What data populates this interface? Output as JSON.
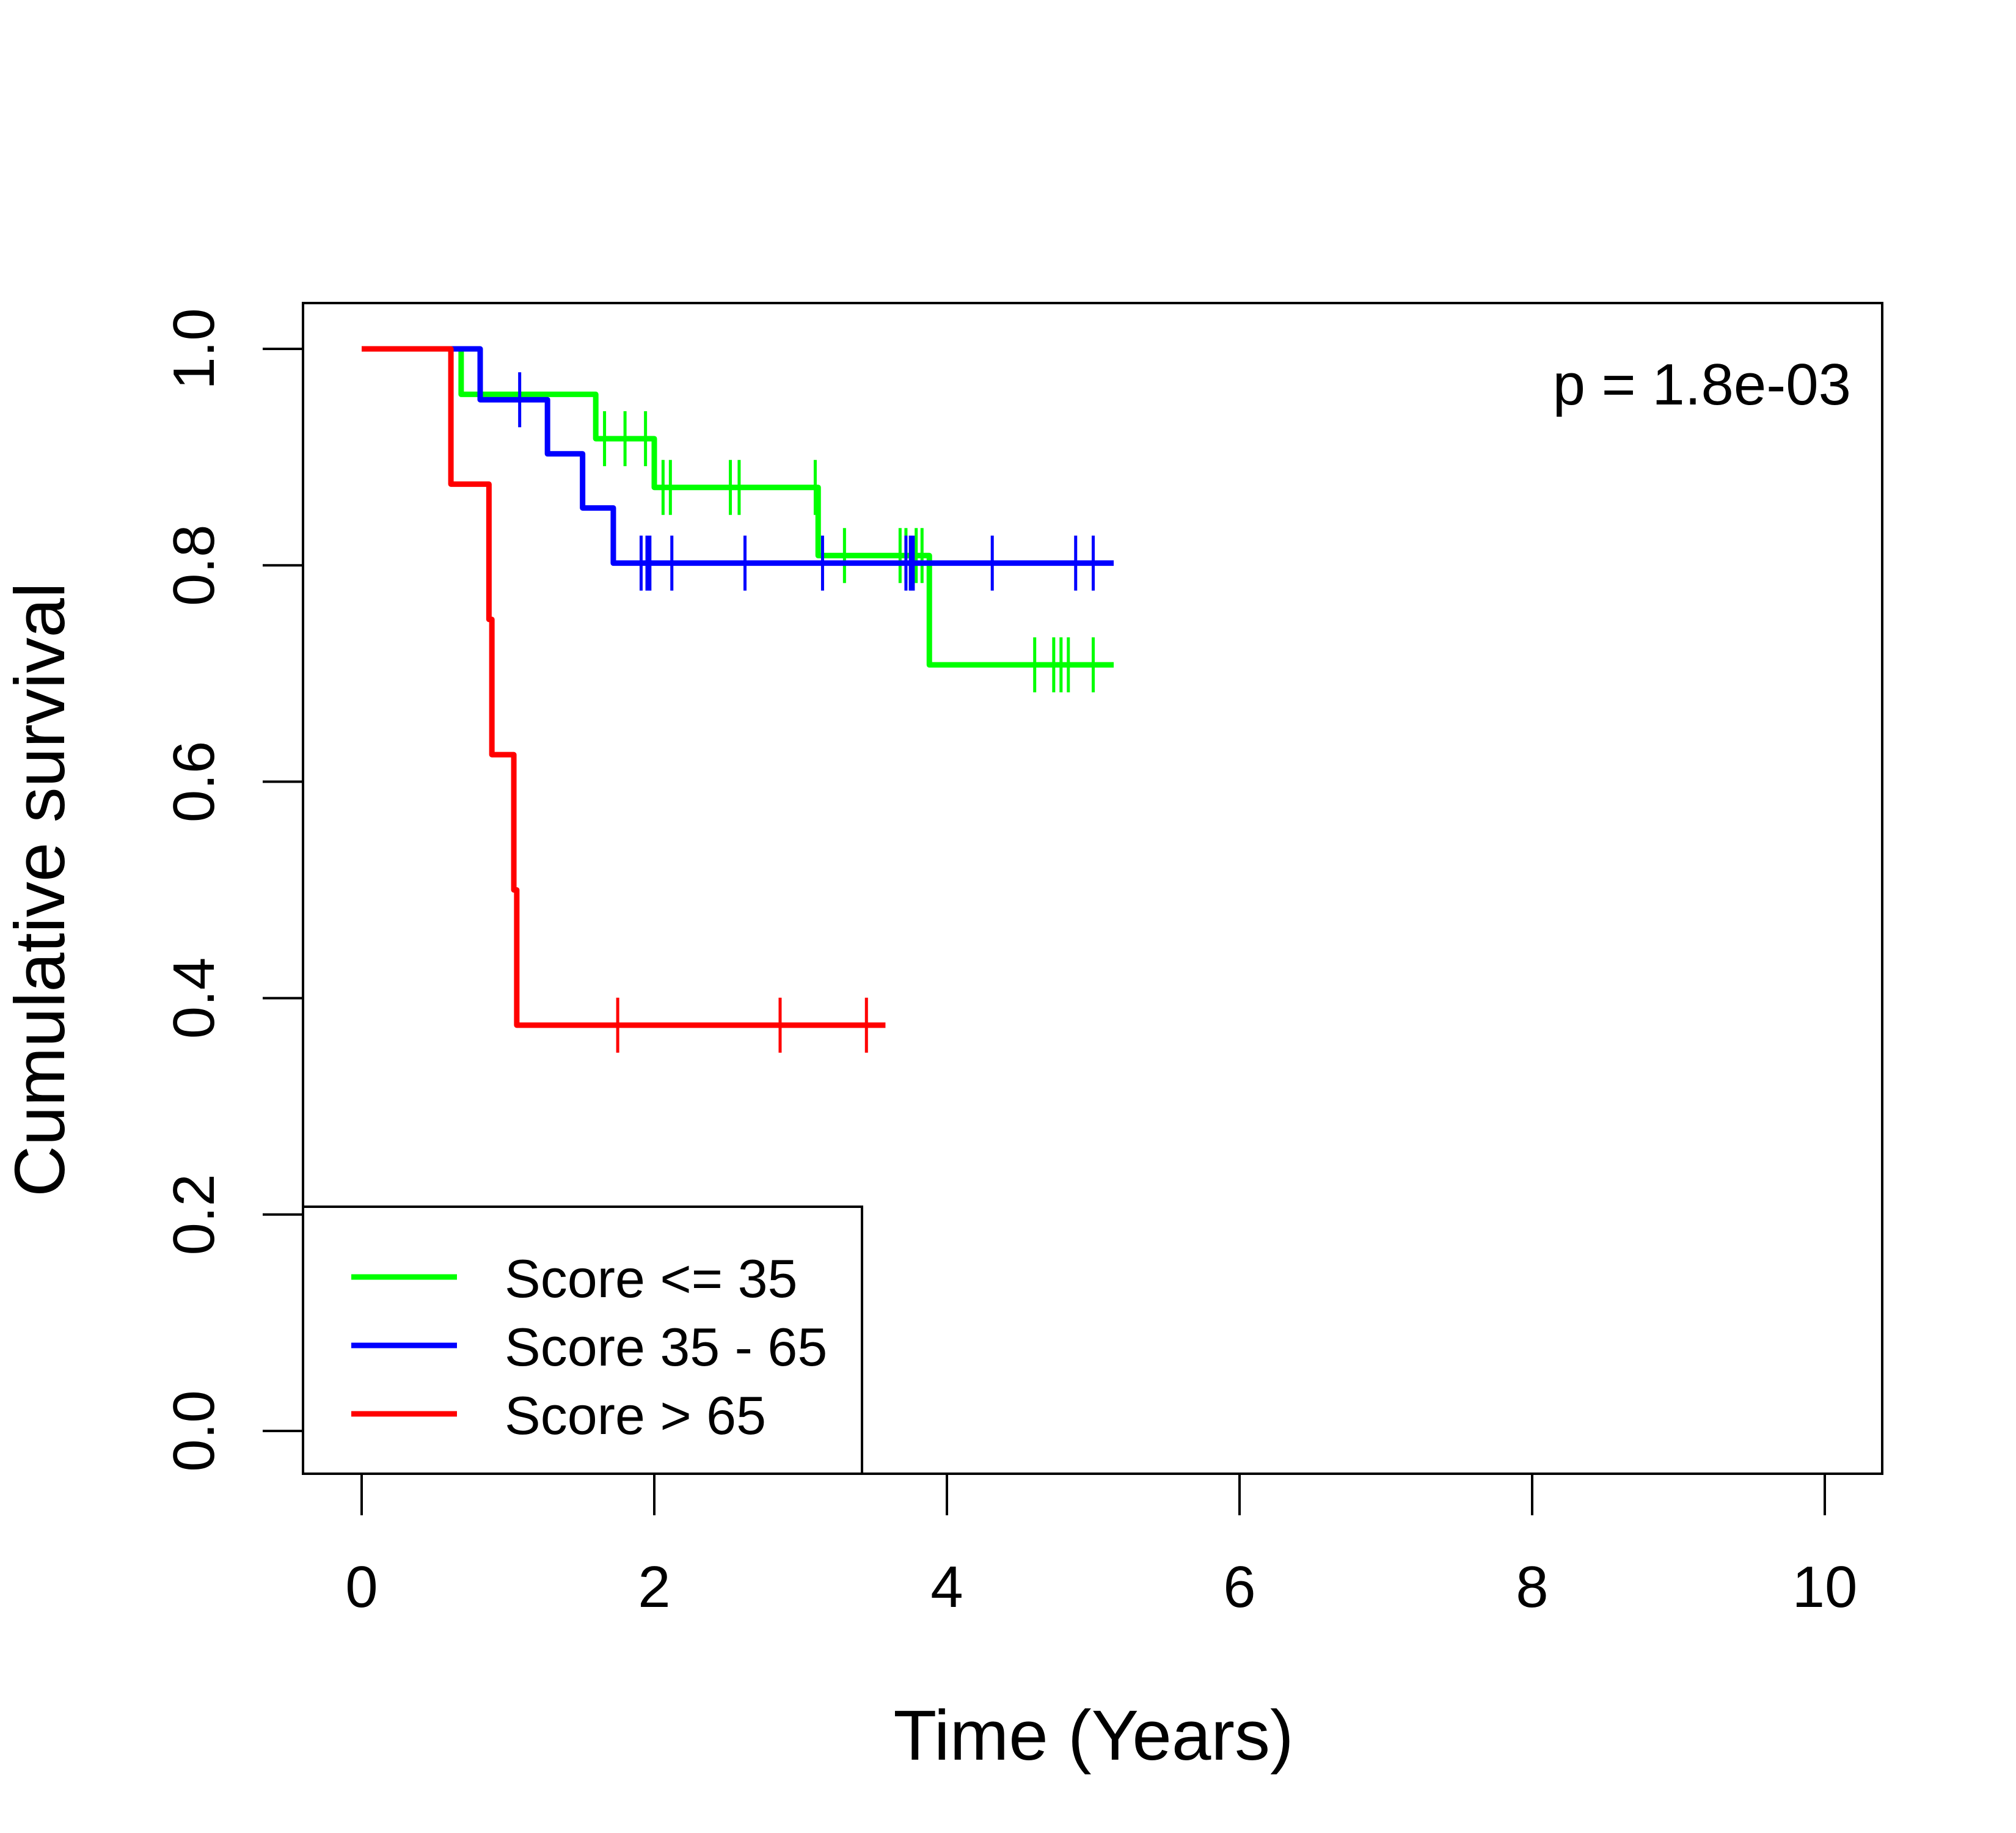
{
  "chart_data": {
    "type": "line",
    "subtype": "kaplan-meier",
    "title": "",
    "xlabel": "Time (Years)",
    "ylabel": "Cumulative survival",
    "xlim": [
      0,
      10
    ],
    "ylim": [
      0,
      1
    ],
    "x_ticks": [
      0,
      2,
      4,
      6,
      8,
      10
    ],
    "x_tick_labels": [
      "0",
      "2",
      "4",
      "6",
      "8",
      "10"
    ],
    "y_ticks": [
      0,
      0.2,
      0.4,
      0.6,
      0.8,
      1.0
    ],
    "y_tick_labels": [
      "0.0",
      "0.2",
      "0.4",
      "0.6",
      "0.8",
      "1.0"
    ],
    "grid": false,
    "annotation": "p = 1.8e-03",
    "legend_position": "bottom-left",
    "series": [
      {
        "name": "Score <= 35",
        "color": "#00ff00",
        "steps": [
          [
            0.68,
            0.958
          ],
          [
            1.6,
            0.917
          ],
          [
            2.0,
            0.872
          ],
          [
            3.12,
            0.809
          ],
          [
            3.88,
            0.708
          ]
        ],
        "censored": [
          1.66,
          1.8,
          1.94,
          2.06,
          2.11,
          2.52,
          2.58,
          3.1,
          3.3,
          3.68,
          3.72,
          3.79,
          3.83,
          4.6,
          4.73,
          4.78,
          4.83,
          5.0
        ],
        "end": 5.14
      },
      {
        "name": "Score 35 - 65",
        "color": "#0000ff",
        "steps": [
          [
            0.81,
            0.953
          ],
          [
            1.27,
            0.903
          ],
          [
            1.51,
            0.853
          ],
          [
            1.72,
            0.802
          ]
        ],
        "censored": [
          1.08,
          1.91,
          1.95,
          1.97,
          2.12,
          2.62,
          3.15,
          3.72,
          3.75,
          3.77,
          4.31,
          4.88,
          5.0
        ],
        "end": 5.14
      },
      {
        "name": "Score > 65",
        "color": "#ff0000",
        "steps": [
          [
            0.61,
            0.875
          ],
          [
            0.87,
            0.75
          ],
          [
            0.89,
            0.625
          ],
          [
            1.04,
            0.5
          ],
          [
            1.06,
            0.375
          ]
        ],
        "censored": [
          1.75,
          2.86,
          3.45
        ],
        "end": 3.58
      }
    ]
  }
}
